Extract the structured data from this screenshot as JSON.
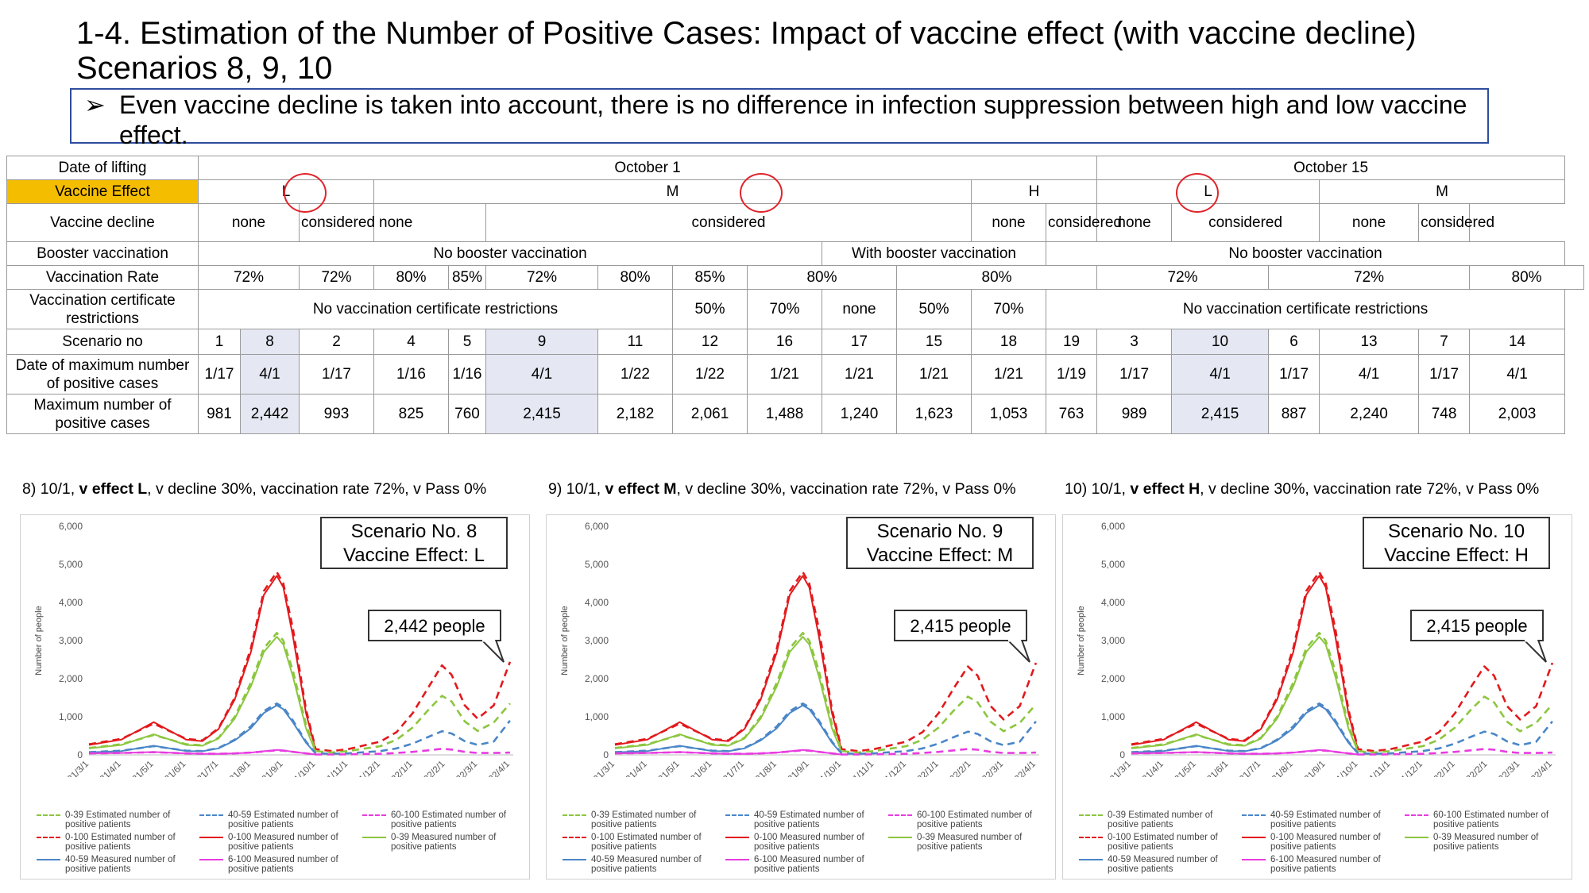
{
  "title": {
    "line1": "1-4. Estimation of the Number of Positive Cases: Impact of vaccine effect (with vaccine decline)",
    "line2": "Scenarios 8, 9, 10"
  },
  "bullet": {
    "mark": "➢",
    "text": "Even vaccine decline is taken into account, there is no difference in infection suppression between high and low vaccine effect."
  },
  "table": {
    "row_headers": {
      "date": "Date of lifting",
      "effect": "Vaccine Effect",
      "decline": "Vaccine decline",
      "booster": "Booster vaccination",
      "rate": "Vaccination Rate",
      "cert": "Vaccination certificate restrictions",
      "scenario": "Scenario no",
      "maxdate": "Date of maximum number of positive cases",
      "maxnum": "Maximum number of positive cases"
    },
    "date_values": [
      "October 1",
      "October 15"
    ],
    "effect_values": [
      "L",
      "M",
      "H",
      "L",
      "M"
    ],
    "decline_values": [
      "none",
      "considered",
      "none",
      "considered",
      "none",
      "considered",
      "none",
      "considered",
      "none",
      "considered"
    ],
    "booster_values": [
      "No booster vaccination",
      "With booster vaccination",
      "No booster vaccination"
    ],
    "rate_values": [
      "72%",
      "72%",
      "80%",
      "85%",
      "72%",
      "80%",
      "85%",
      "80%",
      "80%",
      "72%",
      "72%",
      "80%"
    ],
    "cert_values": [
      "No vaccination certificate restrictions",
      "50%",
      "70%",
      "none",
      "50%",
      "70%",
      "No vaccination certificate restrictions"
    ],
    "scenario_values": [
      "1",
      "8",
      "2",
      "4",
      "5",
      "9",
      "11",
      "12",
      "16",
      "17",
      "15",
      "18",
      "19",
      "3",
      "10",
      "6",
      "13",
      "7",
      "14"
    ],
    "maxdate_values": [
      "1/17",
      "4/1",
      "1/17",
      "1/16",
      "1/16",
      "4/1",
      "1/22",
      "1/22",
      "1/21",
      "1/21",
      "1/21",
      "1/21",
      "1/19",
      "1/17",
      "4/1",
      "1/17",
      "4/1",
      "1/17",
      "4/1"
    ],
    "maxnum_values": [
      "981",
      "2,442",
      "993",
      "825",
      "760",
      "2,415",
      "2,182",
      "2,061",
      "1,488",
      "1,240",
      "1,623",
      "1,053",
      "763",
      "989",
      "2,415",
      "887",
      "2,240",
      "748",
      "2,003"
    ]
  },
  "panels": [
    {
      "title_prefix": "8) 10/1, ",
      "title_bold": "v effect L",
      "title_suffix": ", v decline 30%, vaccination rate 72%, v Pass 0%",
      "scenario_line1": "Scenario No. 8",
      "scenario_line2": "Vaccine Effect: L",
      "callout": "2,442 people"
    },
    {
      "title_prefix": "9) 10/1, ",
      "title_bold": "v effect M",
      "title_suffix": ", v decline 30%, vaccination rate 72%, v Pass 0%",
      "scenario_line1": "Scenario No. 9",
      "scenario_line2": "Vaccine Effect: M",
      "callout": "2,415 people"
    },
    {
      "title_prefix": "10) 10/1, ",
      "title_bold": "v effect H",
      "title_suffix": ", v decline 30%, vaccination rate 72%, v Pass 0%",
      "scenario_line1": "Scenario No. 10",
      "scenario_line2": "Vaccine Effect: H",
      "callout": "2,415 people"
    }
  ],
  "legend_labels": [
    "0-39 Estimated number of positive patients",
    "40-59 Estimated number of positive patients",
    "60-100 Estimated number of positive patients",
    "0-100 Estimated number of positive patients",
    "0-100 Measured number of positive patients",
    "0-39 Measured number of positive patients",
    "40-59 Measured number of positive patients",
    "6-100 Measured number of positive patients"
  ],
  "colors": {
    "green": "#8cc63f",
    "blue": "#4a86c8",
    "magenta": "#e83ce0",
    "red": "#e3191c",
    "accent_orange": "#f5bd00",
    "circle_red": "#e0242b"
  },
  "chart_data": [
    {
      "type": "line",
      "ylabel": "Number of people",
      "ylim": [
        0,
        6000
      ],
      "yticks": [
        "0",
        "1,000",
        "2,000",
        "3,000",
        "4,000",
        "5,000",
        "6,000"
      ],
      "xticks": [
        "2021/3/1",
        "2021/4/1",
        "2021/5/1",
        "2021/6/1",
        "2021/7/1",
        "2021/8/1",
        "2021/9/1",
        "2021/10/1",
        "2021/11/1",
        "2021/12/1",
        "2022/1/1",
        "2022/2/1",
        "2022/3/1",
        "2022/4/1"
      ],
      "x_months": [
        0,
        1,
        2,
        3,
        3.5,
        4,
        4.5,
        5,
        5.4,
        5.8,
        6.0,
        6.3,
        6.7,
        7,
        7.5,
        8,
        9,
        9.5,
        10,
        10.5,
        10.9,
        11.2,
        11.6,
        12,
        12.5,
        13
      ],
      "legend": "bottom",
      "series": [
        {
          "name": "0-100 Estimated number of positive patients",
          "color": "#e3191c",
          "dash": true,
          "values": [
            280,
            420,
            820,
            420,
            380,
            700,
            1500,
            2800,
            4300,
            4800,
            4500,
            3300,
            1200,
            150,
            100,
            150,
            350,
            600,
            1100,
            1800,
            2350,
            2100,
            1300,
            950,
            1300,
            2442
          ]
        },
        {
          "name": "0-100 Measured number of positive patients",
          "color": "#e3191c",
          "dash": false,
          "values": [
            260,
            400,
            860,
            400,
            360,
            680,
            1450,
            2700,
            4200,
            4700,
            4400,
            3100,
            1100,
            120
          ]
        },
        {
          "name": "0-39 Estimated number of positive patients",
          "color": "#8cc63f",
          "dash": true,
          "values": [
            180,
            280,
            520,
            280,
            250,
            450,
            1000,
            1900,
            2800,
            3200,
            3000,
            2200,
            800,
            100,
            60,
            100,
            230,
            400,
            720,
            1200,
            1550,
            1400,
            880,
            630,
            850,
            1350
          ]
        },
        {
          "name": "0-39 Measured number of positive patients",
          "color": "#8cc63f",
          "dash": false,
          "values": [
            170,
            260,
            540,
            260,
            240,
            430,
            950,
            1800,
            2700,
            3100,
            2900,
            2050,
            700,
            80
          ]
        },
        {
          "name": "40-59 Estimated number of positive patients",
          "color": "#4a86c8",
          "dash": true,
          "values": [
            70,
            110,
            230,
            110,
            100,
            180,
            400,
            750,
            1150,
            1350,
            1250,
            900,
            350,
            40,
            30,
            40,
            100,
            170,
            300,
            480,
            620,
            560,
            360,
            260,
            350,
            900
          ]
        },
        {
          "name": "40-59 Measured number of positive patients",
          "color": "#4a86c8",
          "dash": false,
          "values": [
            65,
            100,
            240,
            100,
            95,
            170,
            380,
            700,
            1100,
            1300,
            1200,
            850,
            320,
            30
          ]
        },
        {
          "name": "60-100 Estimated number of positive patients",
          "color": "#e83ce0",
          "dash": true,
          "values": [
            40,
            50,
            70,
            40,
            30,
            30,
            40,
            60,
            90,
            120,
            110,
            80,
            40,
            10,
            10,
            15,
            30,
            50,
            80,
            120,
            160,
            140,
            80,
            50,
            50,
            60
          ]
        },
        {
          "name": "6-100 Measured number of positive patients",
          "color": "#e83ce0",
          "dash": false,
          "values": [
            40,
            50,
            75,
            40,
            30,
            30,
            40,
            60,
            95,
            130,
            120,
            80,
            40,
            10
          ]
        }
      ]
    },
    {
      "type": "line",
      "ylabel": "Number of people",
      "ylim": [
        0,
        6000
      ],
      "yticks": [
        "0",
        "1,000",
        "2,000",
        "3,000",
        "4,000",
        "5,000",
        "6,000"
      ],
      "xticks": [
        "2021/3/1",
        "2021/4/1",
        "2021/5/1",
        "2021/6/1",
        "2021/7/1",
        "2021/8/1",
        "2021/9/1",
        "2021/10/1",
        "2021/11/1",
        "2021/12/1",
        "2022/1/1",
        "2022/2/1",
        "2022/3/1",
        "2022/4/1"
      ],
      "x_months": [
        0,
        1,
        2,
        3,
        3.5,
        4,
        4.5,
        5,
        5.4,
        5.8,
        6.0,
        6.3,
        6.7,
        7,
        7.5,
        8,
        9,
        9.5,
        10,
        10.5,
        10.9,
        11.2,
        11.6,
        12,
        12.5,
        13
      ],
      "legend": "bottom",
      "series": [
        {
          "name": "0-100 Estimated number of positive patients",
          "color": "#e3191c",
          "dash": true,
          "values": [
            280,
            420,
            820,
            420,
            380,
            700,
            1500,
            2800,
            4300,
            4800,
            4500,
            3300,
            1200,
            150,
            100,
            150,
            350,
            600,
            1100,
            1800,
            2320,
            2080,
            1280,
            930,
            1280,
            2415
          ]
        },
        {
          "name": "0-100 Measured number of positive patients",
          "color": "#e3191c",
          "dash": false,
          "values": [
            260,
            400,
            860,
            400,
            360,
            680,
            1450,
            2700,
            4200,
            4700,
            4400,
            3100,
            1100,
            120
          ]
        },
        {
          "name": "0-39 Estimated number of positive patients",
          "color": "#8cc63f",
          "dash": true,
          "values": [
            180,
            280,
            520,
            280,
            250,
            450,
            1000,
            1900,
            2800,
            3200,
            3000,
            2200,
            800,
            100,
            60,
            100,
            230,
            400,
            720,
            1200,
            1530,
            1380,
            870,
            620,
            840,
            1330
          ]
        },
        {
          "name": "0-39 Measured number of positive patients",
          "color": "#8cc63f",
          "dash": false,
          "values": [
            170,
            260,
            540,
            260,
            240,
            430,
            950,
            1800,
            2700,
            3100,
            2900,
            2050,
            700,
            80
          ]
        },
        {
          "name": "40-59 Estimated number of positive patients",
          "color": "#4a86c8",
          "dash": true,
          "values": [
            70,
            110,
            230,
            110,
            100,
            180,
            400,
            750,
            1150,
            1350,
            1250,
            900,
            350,
            40,
            30,
            40,
            100,
            170,
            300,
            480,
            610,
            550,
            355,
            255,
            345,
            880
          ]
        },
        {
          "name": "40-59 Measured number of positive patients",
          "color": "#4a86c8",
          "dash": false,
          "values": [
            65,
            100,
            240,
            100,
            95,
            170,
            380,
            700,
            1100,
            1300,
            1200,
            850,
            320,
            30
          ]
        },
        {
          "name": "60-100 Estimated number of positive patients",
          "color": "#e83ce0",
          "dash": true,
          "values": [
            40,
            50,
            70,
            40,
            30,
            30,
            40,
            60,
            90,
            120,
            110,
            80,
            40,
            10,
            10,
            15,
            30,
            50,
            80,
            120,
            155,
            135,
            80,
            50,
            50,
            60
          ]
        },
        {
          "name": "6-100 Measured number of positive patients",
          "color": "#e83ce0",
          "dash": false,
          "values": [
            40,
            50,
            75,
            40,
            30,
            30,
            40,
            60,
            95,
            130,
            120,
            80,
            40,
            10
          ]
        }
      ]
    },
    {
      "type": "line",
      "ylabel": "Number of people",
      "ylim": [
        0,
        6000
      ],
      "yticks": [
        "0",
        "1,000",
        "2,000",
        "3,000",
        "4,000",
        "5,000",
        "6,000"
      ],
      "xticks": [
        "2021/3/1",
        "2021/4/1",
        "2021/5/1",
        "2021/6/1",
        "2021/7/1",
        "2021/8/1",
        "2021/9/1",
        "2021/10/1",
        "2021/11/1",
        "2021/12/1",
        "2022/1/1",
        "2022/2/1",
        "2022/3/1",
        "2022/4/1"
      ],
      "x_months": [
        0,
        1,
        2,
        3,
        3.5,
        4,
        4.5,
        5,
        5.4,
        5.8,
        6.0,
        6.3,
        6.7,
        7,
        7.5,
        8,
        9,
        9.5,
        10,
        10.5,
        10.9,
        11.2,
        11.6,
        12,
        12.5,
        13
      ],
      "legend": "bottom",
      "series": [
        {
          "name": "0-100 Estimated number of positive patients",
          "color": "#e3191c",
          "dash": true,
          "values": [
            280,
            420,
            820,
            420,
            380,
            700,
            1500,
            2800,
            4300,
            4800,
            4500,
            3300,
            1200,
            150,
            100,
            150,
            350,
            600,
            1100,
            1800,
            2320,
            2080,
            1280,
            930,
            1280,
            2415
          ]
        },
        {
          "name": "0-100 Measured number of positive patients",
          "color": "#e3191c",
          "dash": false,
          "values": [
            260,
            400,
            860,
            400,
            360,
            680,
            1450,
            2700,
            4200,
            4700,
            4400,
            3100,
            1100,
            120
          ]
        },
        {
          "name": "0-39 Estimated number of positive patients",
          "color": "#8cc63f",
          "dash": true,
          "values": [
            180,
            280,
            520,
            280,
            250,
            450,
            1000,
            1900,
            2800,
            3200,
            3000,
            2200,
            800,
            100,
            60,
            100,
            230,
            400,
            720,
            1200,
            1530,
            1380,
            870,
            620,
            840,
            1330
          ]
        },
        {
          "name": "0-39 Measured number of positive patients",
          "color": "#8cc63f",
          "dash": false,
          "values": [
            170,
            260,
            540,
            260,
            240,
            430,
            950,
            1800,
            2700,
            3100,
            2900,
            2050,
            700,
            80
          ]
        },
        {
          "name": "40-59 Estimated number of positive patients",
          "color": "#4a86c8",
          "dash": true,
          "values": [
            70,
            110,
            230,
            110,
            100,
            180,
            400,
            750,
            1150,
            1350,
            1250,
            900,
            350,
            40,
            30,
            40,
            100,
            170,
            300,
            480,
            610,
            550,
            355,
            255,
            345,
            880
          ]
        },
        {
          "name": "40-59 Measured number of positive patients",
          "color": "#4a86c8",
          "dash": false,
          "values": [
            65,
            100,
            240,
            100,
            95,
            170,
            380,
            700,
            1100,
            1300,
            1200,
            850,
            320,
            30
          ]
        },
        {
          "name": "60-100 Estimated number of positive patients",
          "color": "#e83ce0",
          "dash": true,
          "values": [
            40,
            50,
            70,
            40,
            30,
            30,
            40,
            60,
            90,
            120,
            110,
            80,
            40,
            10,
            10,
            15,
            30,
            50,
            80,
            120,
            155,
            135,
            80,
            50,
            50,
            60
          ]
        },
        {
          "name": "6-100 Measured number of positive patients",
          "color": "#e83ce0",
          "dash": false,
          "values": [
            40,
            50,
            75,
            40,
            30,
            30,
            40,
            60,
            95,
            130,
            120,
            80,
            40,
            10
          ]
        }
      ]
    }
  ]
}
